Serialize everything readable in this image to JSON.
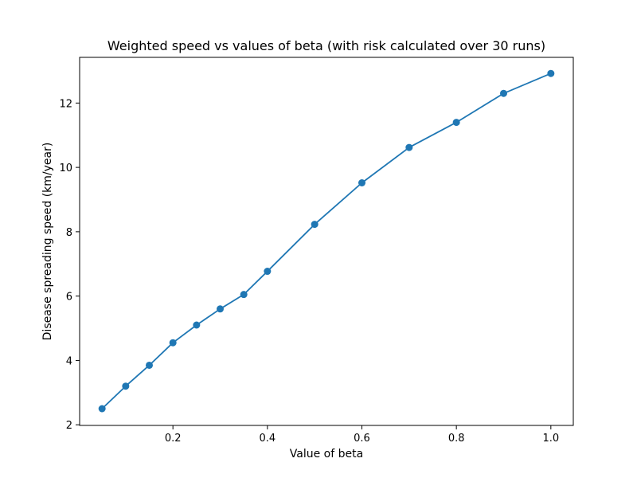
{
  "chart_data": {
    "type": "line",
    "title": "Weighted speed vs values of beta (with risk calculated over 30 runs)",
    "xlabel": "Value of beta",
    "ylabel": "Disease spreading speed (km/year)",
    "xlim": [
      0.0025,
      1.0475
    ],
    "ylim": [
      1.98,
      13.42
    ],
    "xticks": [
      0.2,
      0.4,
      0.6,
      0.8,
      1.0
    ],
    "xtick_labels": [
      "0.2",
      "0.4",
      "0.6",
      "0.8",
      "1.0"
    ],
    "yticks": [
      2,
      4,
      6,
      8,
      10,
      12
    ],
    "ytick_labels": [
      "2",
      "4",
      "6",
      "8",
      "10",
      "12"
    ],
    "grid": false,
    "series": [
      {
        "color": "#1f77b4",
        "marker": "circle",
        "x": [
          0.05,
          0.1,
          0.15,
          0.2,
          0.25,
          0.3,
          0.35,
          0.4,
          0.5,
          0.6,
          0.7,
          0.8,
          0.9,
          1.0
        ],
        "y": [
          2.5,
          3.2,
          3.85,
          4.55,
          5.1,
          5.6,
          6.05,
          6.77,
          8.23,
          9.52,
          10.62,
          11.4,
          12.3,
          12.92
        ]
      }
    ]
  }
}
